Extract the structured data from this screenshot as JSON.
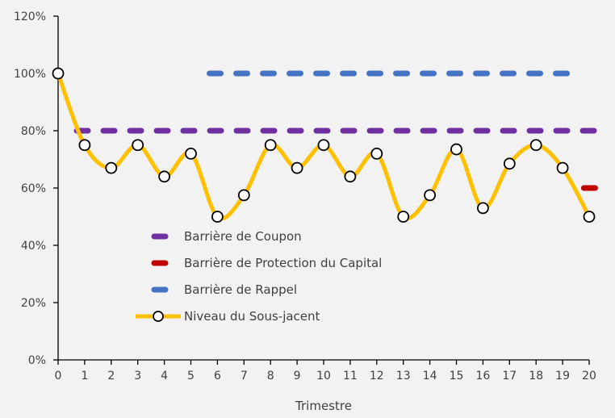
{
  "chart_data": {
    "type": "line",
    "title": "",
    "xlabel": "Trimestre",
    "ylabel": "",
    "x": [
      0,
      1,
      2,
      3,
      4,
      5,
      6,
      7,
      8,
      9,
      10,
      11,
      12,
      13,
      14,
      15,
      16,
      17,
      18,
      19,
      20
    ],
    "xlim": [
      0,
      20
    ],
    "ylim": [
      0,
      120
    ],
    "yticks": [
      "0%",
      "20%",
      "40%",
      "60%",
      "80%",
      "100%",
      "120%"
    ],
    "grid": false,
    "legend_position": "center-left",
    "series": [
      {
        "name": "Barrière de Coupon",
        "style": "dashed",
        "color": "#7030a0",
        "x": [
          0.7,
          20.3
        ],
        "values": [
          80,
          80
        ]
      },
      {
        "name": "Barrière de Protection du Capital",
        "style": "dashed",
        "color": "#c00000",
        "x": [
          19.8,
          20.3
        ],
        "values": [
          60,
          60
        ]
      },
      {
        "name": "Barrière de Rappel",
        "style": "dashed",
        "color": "#4472c4",
        "x": [
          5.7,
          19.3
        ],
        "values": [
          100,
          100
        ]
      },
      {
        "name": "Niveau du Sous-jacent",
        "style": "smooth-line-markers",
        "color": "#ffc000",
        "x": [
          0,
          1,
          2,
          3,
          4,
          5,
          6,
          7,
          8,
          9,
          10,
          11,
          12,
          13,
          14,
          15,
          16,
          17,
          18,
          19,
          20
        ],
        "values": [
          100,
          75,
          67,
          75,
          64,
          72,
          50,
          57.5,
          75,
          67,
          75,
          64,
          72,
          50,
          57.5,
          73.5,
          53,
          68.5,
          75,
          67,
          50
        ]
      }
    ]
  }
}
